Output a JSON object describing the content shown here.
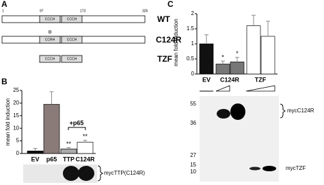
{
  "panel_a": {
    "label": "A",
    "positions": [
      "1",
      "97",
      "173",
      "326"
    ],
    "rows": [
      {
        "name": "WT",
        "domains": [
          "CCCH",
          "CCCH"
        ]
      },
      {
        "name": "C124R",
        "domains": [
          "CCRH",
          "CCCH"
        ],
        "mark": "¤"
      },
      {
        "name": "TZF",
        "domains": [
          "CCCH",
          "CCCH"
        ]
      }
    ]
  },
  "panel_b": {
    "label": "B",
    "chart": {
      "type": "bar",
      "ylabel": "mean fold induction",
      "categories": [
        "EV",
        "p65",
        "TTP",
        "C124R"
      ],
      "values": [
        1,
        19.5,
        1.8,
        4.5
      ],
      "errors": [
        1,
        5,
        0.5,
        0.7
      ],
      "colors": [
        "#111111",
        "#8a7b78",
        "#aaaaaa",
        "#ffffff"
      ],
      "annotations": [
        null,
        null,
        "**",
        "**"
      ],
      "bracket_label": "+p65",
      "ylim": [
        0,
        25
      ],
      "yticks": [
        0,
        5,
        10,
        15,
        20,
        25
      ]
    },
    "blot_label": "mycTTP(C124R)"
  },
  "panel_c": {
    "label": "C",
    "chart": {
      "type": "bar",
      "ylabel": "mean fold induction",
      "groups": [
        "EV",
        "C124R",
        "TZF"
      ],
      "values": [
        1,
        0.33,
        0.4,
        1.6,
        1.25
      ],
      "errors": [
        0.3,
        0.1,
        0.15,
        0.35,
        0.5
      ],
      "colors": [
        "#111111",
        "#777777",
        "#777777",
        "#ffffff",
        "#ffffff"
      ],
      "annotations": [
        null,
        "*",
        "*",
        null,
        null
      ],
      "ylim": [
        0,
        2
      ],
      "yticks": [
        0,
        0.5,
        1,
        1.5,
        2
      ]
    },
    "markers": [
      55,
      36,
      27,
      15,
      10
    ],
    "band_labels": [
      "mycC124R",
      "mycTZF"
    ]
  }
}
